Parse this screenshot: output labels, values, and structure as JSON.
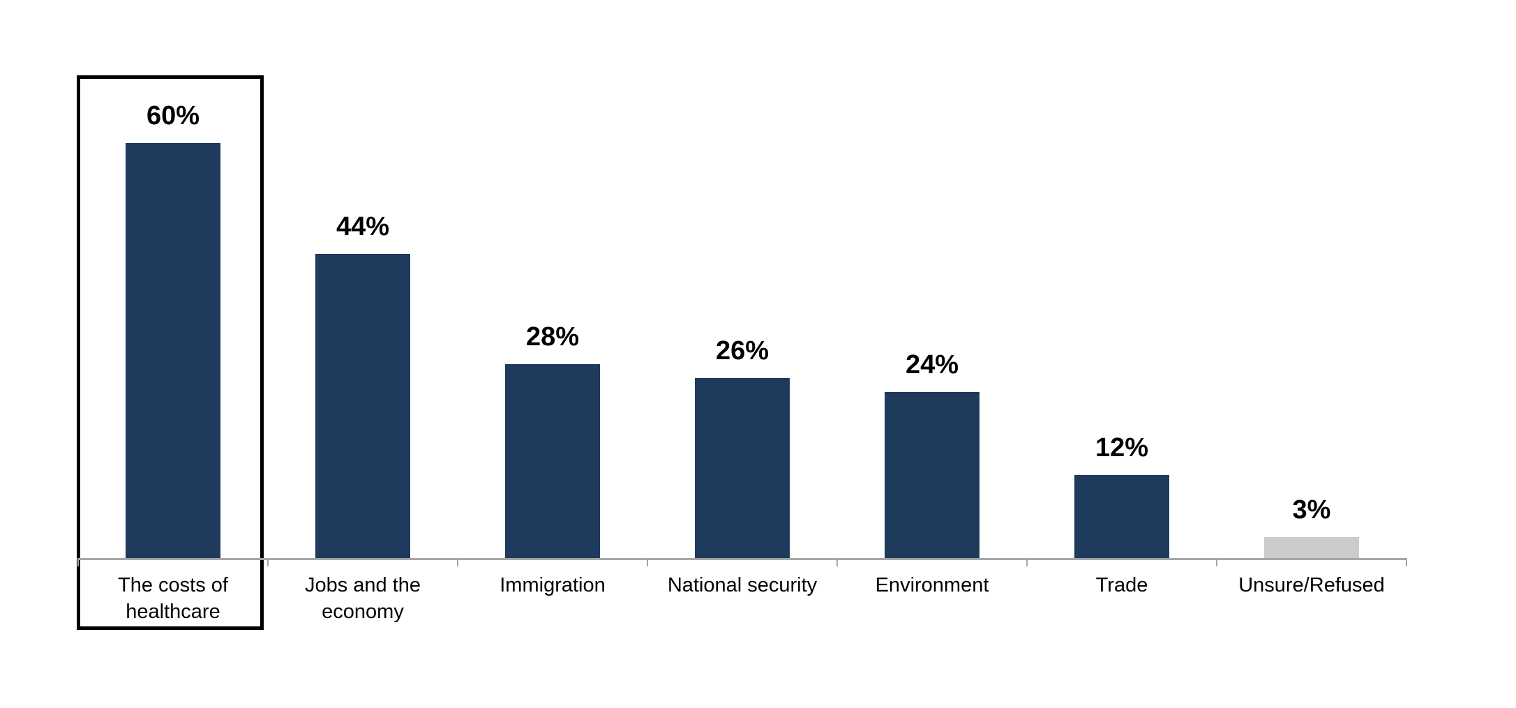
{
  "chart_data": {
    "type": "bar",
    "title": "",
    "xlabel": "",
    "ylabel": "",
    "grid": false,
    "legend": false,
    "ylim": [
      0,
      70
    ],
    "categories": [
      "The costs of\nhealthcare",
      "Jobs and the\neconomy",
      "Immigration",
      "National security",
      "Environment",
      "Trade",
      "Unsure/Refused"
    ],
    "values": [
      60,
      44,
      28,
      26,
      24,
      12,
      3
    ],
    "value_labels": [
      "60%",
      "44%",
      "28%",
      "26%",
      "24%",
      "12%",
      "3%"
    ],
    "highlighted_index": 0,
    "muted_indices": [
      6
    ],
    "colors": {
      "bar": "#1E3A5C",
      "muted_bar": "#CBCBCB",
      "axis": "#A6A6A6",
      "value_label": "#000000",
      "category_label": "#000000",
      "highlight_border": "#000000",
      "background": "#FFFFFF"
    }
  }
}
